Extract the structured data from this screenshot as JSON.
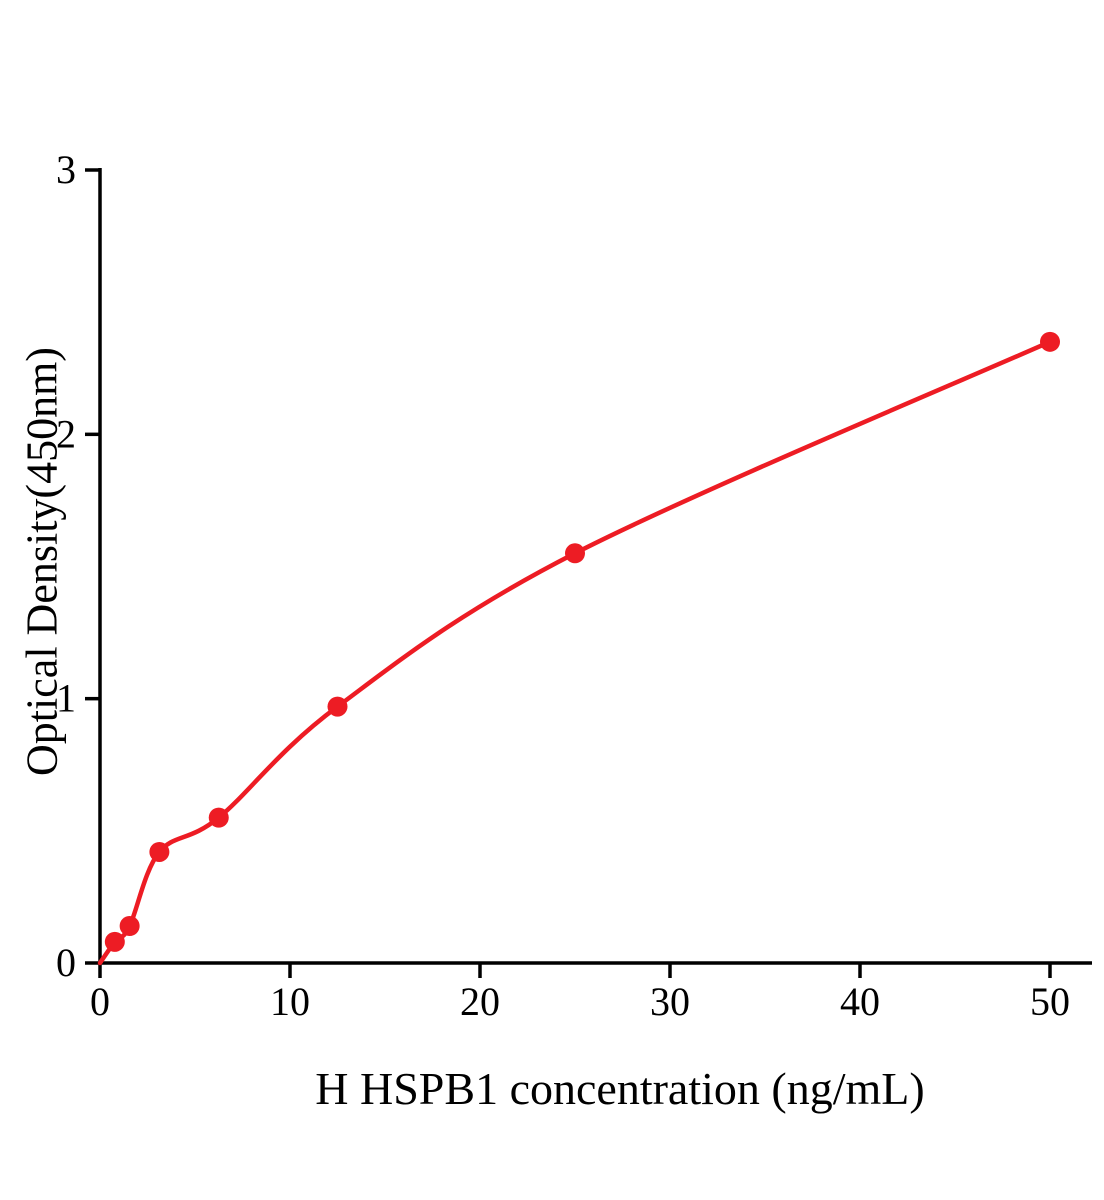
{
  "chart_data": {
    "type": "scatter",
    "title": "",
    "xlabel": "H HSPB1 concentration (ng/mL)",
    "ylabel": "Optical Density(450nm)",
    "x": [
      0.78,
      1.56,
      3.125,
      6.25,
      12.5,
      25,
      50
    ],
    "y": [
      0.08,
      0.14,
      0.42,
      0.55,
      0.97,
      1.55,
      2.35
    ],
    "curve_start": [
      0,
      0
    ],
    "curve_style": "smooth-fit-through-points",
    "xlim": [
      0,
      52
    ],
    "ylim": [
      0,
      3
    ],
    "xticks": [
      0,
      10,
      20,
      30,
      40,
      50
    ],
    "yticks": [
      0,
      1,
      2,
      3
    ],
    "line_color": "#ed1c24",
    "marker_color": "#ed1c24",
    "axis_color": "#000000",
    "grid": "off",
    "legend": "none"
  }
}
